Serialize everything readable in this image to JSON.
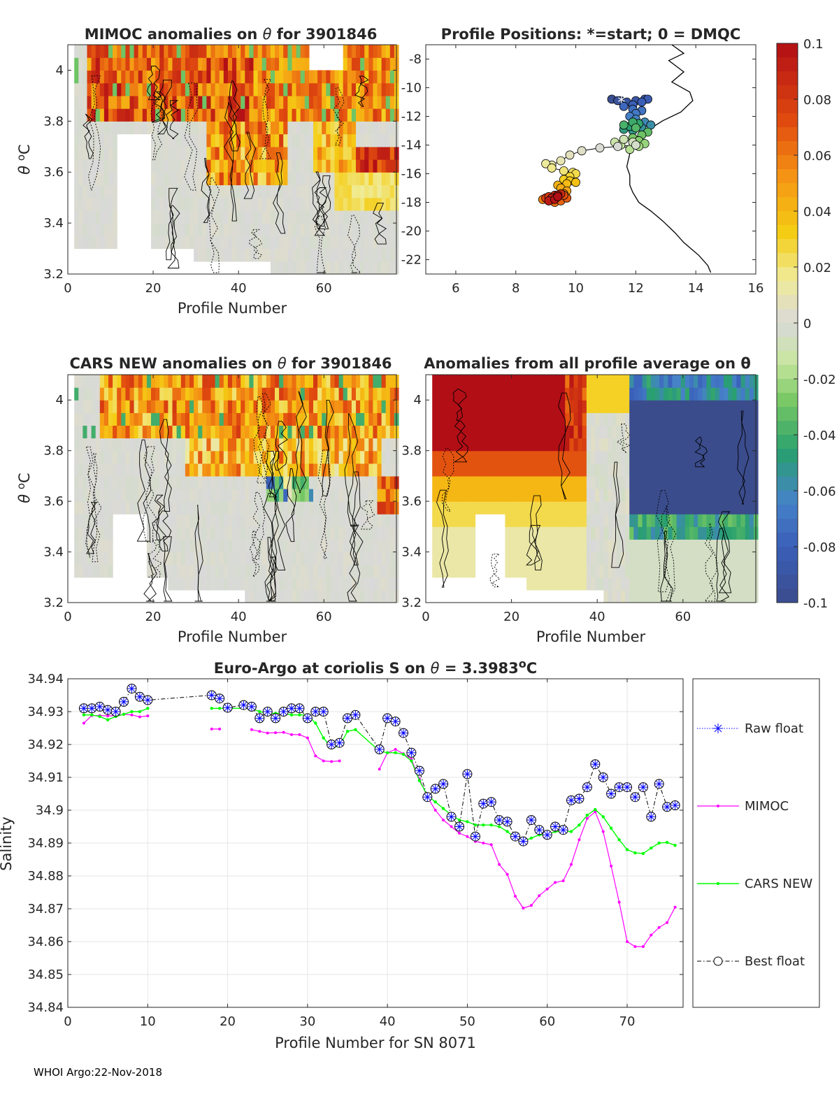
{
  "footer": "WHOI Argo:22-Nov-2018",
  "colors": {
    "raw": "#0000ff",
    "mimoc": "#ff00ff",
    "cars": "#00ff00",
    "best": "#000000",
    "axis": "#262626",
    "grid": "#e6e6e6"
  },
  "chart_data": [
    {
      "type": "heatmap",
      "id": "mimoc",
      "title_prefix": "MIMOC anomalies on ",
      "title_theta": "θ",
      "title_suffix": "  for 3901846",
      "xlabel": "Profile Number",
      "ylabel": "θ °C",
      "xlim": [
        0,
        77
      ],
      "ylim": [
        3.2,
        4.1
      ],
      "xticks": [
        "0",
        "20",
        "40",
        "60"
      ],
      "yticks": [
        "3.2",
        "3.4",
        "3.6",
        "3.8",
        "4"
      ],
      "profiles": 76,
      "levels": 18,
      "missing_bottom_from_profile": [
        [
          2,
          3.3
        ],
        [
          10,
          3.3
        ],
        [
          18,
          3.3
        ],
        [
          28,
          3.25
        ],
        [
          46,
          3.25
        ],
        [
          55,
          3.2
        ]
      ],
      "missing_blocks": [
        {
          "x": [
            11,
            18
          ],
          "y": [
            3.2,
            3.75
          ]
        },
        {
          "x": [
            56,
            64
          ],
          "y": [
            4.03,
            4.1
          ]
        }
      ],
      "anomaly": "warm upper layer (+0.06..+0.1) for profiles 5-40 above 3.8°C; warm band +0.06..+0.1 at 3.6-3.7°C for profiles 68-77; near zero below 3.6°C"
    },
    {
      "type": "scatter",
      "id": "positions",
      "title": "Profile Positions: *=start; 0 = DMQC",
      "xlim": [
        5,
        16
      ],
      "ylim": [
        -23,
        -7
      ],
      "xticks": [
        "6",
        "8",
        "10",
        "12",
        "14",
        "16"
      ],
      "yticks": [
        "-8",
        "-10",
        "-12",
        "-14",
        "-16",
        "-18",
        "-20",
        "-22"
      ],
      "lon": [
        11.5,
        11.2,
        11.4,
        11.7,
        12.0,
        12.3,
        12.4,
        12.2,
        11.9,
        11.6,
        11.9,
        12.2,
        12.0,
        11.8,
        12.0,
        12.3,
        12.5,
        12.2,
        11.9,
        11.6,
        11.8,
        12.1,
        11.9,
        11.6,
        12.0,
        12.4,
        12.2,
        11.9,
        12.1,
        12.3,
        12.1,
        11.8,
        11.5,
        11.3,
        11.6,
        11.9,
        12.0,
        11.4,
        10.8,
        10.2,
        9.8,
        9.5,
        9.2,
        9.0,
        9.2,
        9.6,
        9.9,
        10.0,
        9.8,
        9.6,
        9.8,
        10.0,
        9.7,
        9.4,
        9.5,
        9.7,
        9.6,
        9.3,
        9.0,
        8.9,
        9.1,
        9.3,
        9.5,
        9.7,
        9.6,
        9.4,
        9.2,
        9.0,
        9.1,
        9.3,
        9.5,
        9.4,
        9.2,
        9.1,
        9.3,
        9.4
      ],
      "lat": [
        -10.9,
        -10.8,
        -10.9,
        -11.0,
        -10.9,
        -10.8,
        -10.8,
        -11.0,
        -11.2,
        -11.3,
        -11.5,
        -11.6,
        -11.8,
        -12.0,
        -12.2,
        -12.4,
        -12.6,
        -12.8,
        -13.0,
        -12.9,
        -12.7,
        -12.5,
        -12.4,
        -12.6,
        -12.8,
        -13.1,
        -13.3,
        -13.5,
        -13.7,
        -13.9,
        -14.1,
        -14.3,
        -14.0,
        -13.8,
        -13.6,
        -13.8,
        -14.0,
        -14.1,
        -14.2,
        -14.4,
        -14.7,
        -15.1,
        -15.4,
        -15.3,
        -15.6,
        -15.8,
        -15.9,
        -16.0,
        -16.2,
        -16.4,
        -16.5,
        -16.6,
        -16.7,
        -16.8,
        -17.0,
        -17.2,
        -17.4,
        -17.6,
        -17.7,
        -17.8,
        -17.9,
        -18.0,
        -17.9,
        -17.7,
        -17.5,
        -17.6,
        -17.8,
        -17.7,
        -17.6,
        -17.5,
        -17.4,
        -17.5,
        -17.7,
        -17.9,
        -17.8,
        -17.6
      ],
      "start_marker": "*",
      "colorbar": {
        "ticks": [
          "0.1",
          "0.08",
          "0.06",
          "0.04",
          "0.02",
          "0",
          "-0.02",
          "-0.04",
          "-0.06",
          "-0.08",
          "-0.1"
        ],
        "range": [
          -0.1,
          0.1
        ]
      }
    },
    {
      "type": "heatmap",
      "id": "cars",
      "title_prefix": "CARS NEW anomalies on ",
      "title_theta": "θ",
      "title_suffix": " for 3901846",
      "xlabel": "Profile Number",
      "ylabel": "θ °C",
      "xlim": [
        0,
        77
      ],
      "ylim": [
        3.2,
        4.1
      ],
      "xticks": [
        "0",
        "20",
        "40",
        "60"
      ],
      "yticks": [
        "3.2",
        "3.4",
        "3.6",
        "3.8",
        "4"
      ],
      "anomaly": "warm +0.04..+0.1 for profiles 8-55 above 3.8°C; blue -0.08 patches at 3.6-3.7°C near profiles 48-55; near zero below 3.6°C"
    },
    {
      "type": "heatmap",
      "id": "avg",
      "title": "Anomalies from all profile average on θ",
      "xlabel": "Profile Number",
      "xlim": [
        0,
        77
      ],
      "ylim": [
        3.2,
        4.1
      ],
      "xticks": [
        "0",
        "20",
        "40",
        "60"
      ],
      "yticks": [
        "3.2",
        "3.4",
        "3.6",
        "3.8",
        "4"
      ],
      "anomaly": "strong warm (+0.1) for profiles 1-35 above 3.8°C; strong cold (-0.1) for profiles 48-77 at 3.55-4.0°C"
    },
    {
      "type": "line",
      "id": "salinity",
      "title_main": "Euro-Argo at coriolis S on ",
      "title_theta": "θ",
      "title_eq": " = 3.3983",
      "title_deg": "o",
      "title_c": "C",
      "xlabel": "Profile Number for SN 8071",
      "ylabel": "Salinity",
      "xlim": [
        0,
        77
      ],
      "ylim": [
        34.84,
        34.94
      ],
      "xticks": [
        0,
        10,
        20,
        30,
        40,
        50,
        60,
        70
      ],
      "yticks": [
        "34.84",
        "34.85",
        "34.86",
        "34.87",
        "34.88",
        "34.89",
        "34.9",
        "34.91",
        "34.92",
        "34.93",
        "34.94"
      ],
      "legend": [
        "Raw float",
        "MIMOC",
        "CARS NEW",
        "Best float"
      ],
      "series": [
        {
          "name": "Raw float / Best float",
          "x": [
            2,
            3,
            4,
            5,
            6,
            7,
            8,
            9,
            10,
            18,
            19,
            20,
            22,
            23,
            24,
            25,
            26,
            27,
            28,
            29,
            30,
            31,
            32,
            33,
            34,
            35,
            36,
            39,
            40,
            41,
            42,
            43,
            44,
            45,
            46,
            47,
            48,
            49,
            50,
            51,
            52,
            53,
            54,
            55,
            56,
            57,
            58,
            59,
            60,
            61,
            62,
            63,
            64,
            65,
            66,
            67,
            68,
            69,
            70,
            71,
            72,
            73,
            74,
            75,
            76
          ],
          "y": [
            34.931,
            34.931,
            34.9315,
            34.9305,
            34.93,
            34.933,
            34.937,
            34.9345,
            34.9335,
            34.935,
            34.934,
            34.9312,
            34.932,
            34.9315,
            34.928,
            34.93,
            34.928,
            34.93,
            34.931,
            34.931,
            34.928,
            34.93,
            34.93,
            34.92,
            34.9205,
            34.928,
            34.929,
            34.9185,
            34.928,
            34.927,
            34.9235,
            34.9175,
            34.912,
            34.904,
            34.9065,
            34.908,
            34.898,
            34.895,
            34.911,
            34.892,
            34.902,
            34.9025,
            34.897,
            34.8965,
            34.892,
            34.8905,
            34.897,
            34.894,
            34.8925,
            34.895,
            34.894,
            34.903,
            34.9035,
            34.907,
            34.914,
            34.91,
            34.905,
            34.907,
            34.907,
            34.904,
            34.907,
            34.898,
            34.908,
            34.901,
            34.9015
          ]
        },
        {
          "name": "MIMOC",
          "segments": [
            {
              "x": [
                2,
                3,
                4,
                5,
                6,
                7,
                8,
                9,
                10
              ],
              "y": [
                34.9265,
                34.9288,
                34.9288,
                34.9287,
                34.9288,
                34.9292,
                34.929,
                34.9284,
                34.9287
              ]
            },
            {
              "x": [
                18,
                19
              ],
              "y": [
                34.9247,
                34.9247
              ]
            },
            {
              "x": [
                23,
                24,
                25,
                26,
                27,
                28,
                29,
                30,
                31,
                32,
                33,
                34
              ],
              "y": [
                34.9245,
                34.924,
                34.9235,
                34.9236,
                34.9237,
                34.923,
                34.923,
                34.922,
                34.9165,
                34.915,
                34.9148,
                34.915
              ]
            },
            {
              "x": [
                39,
                40,
                41,
                42,
                43,
                44,
                45,
                46,
                47,
                48,
                49,
                50,
                51,
                52,
                53,
                54,
                55,
                56,
                57,
                58,
                59,
                60,
                61,
                62,
                63,
                64,
                65,
                66,
                67,
                68,
                69,
                70,
                71,
                72,
                73,
                74,
                75,
                76
              ],
              "y": [
                34.9125,
                34.9175,
                34.9185,
                34.9172,
                34.9155,
                34.9095,
                34.904,
                34.9,
                34.897,
                34.895,
                34.893,
                34.892,
                34.8905,
                34.89,
                34.8895,
                34.8835,
                34.8805,
                34.8738,
                34.8702,
                34.871,
                34.874,
                34.876,
                34.878,
                34.8785,
                34.8835,
                34.891,
                34.8975,
                34.8995,
                34.8935,
                34.883,
                34.872,
                34.86,
                34.8585,
                34.8585,
                34.862,
                34.8643,
                34.8658,
                34.8705
              ]
            }
          ]
        },
        {
          "name": "CARS NEW",
          "x": [
            2,
            3,
            4,
            5,
            6,
            7,
            8,
            9,
            10,
            18,
            19,
            20,
            22,
            23,
            24,
            25,
            26,
            27,
            28,
            29,
            30,
            31,
            32,
            33,
            34,
            35,
            36,
            39,
            40,
            41,
            42,
            43,
            44,
            45,
            46,
            47,
            48,
            49,
            50,
            51,
            52,
            53,
            54,
            55,
            56,
            57,
            58,
            59,
            60,
            61,
            62,
            63,
            64,
            65,
            66,
            67,
            68,
            69,
            70,
            71,
            72,
            73,
            74,
            75,
            76
          ],
          "y": [
            34.929,
            34.929,
            34.9285,
            34.9275,
            34.9285,
            34.9292,
            34.93,
            34.93,
            34.931,
            34.931,
            34.931,
            34.931,
            34.931,
            34.931,
            34.93,
            34.9295,
            34.9295,
            34.9295,
            34.929,
            34.929,
            34.929,
            34.9265,
            34.922,
            34.919,
            34.9195,
            34.924,
            34.9245,
            34.918,
            34.9175,
            34.9175,
            34.917,
            34.915,
            34.909,
            34.9045,
            34.9025,
            34.9005,
            34.8985,
            34.897,
            34.8965,
            34.8955,
            34.8955,
            34.8955,
            34.895,
            34.8935,
            34.8915,
            34.8905,
            34.8915,
            34.8925,
            34.8925,
            34.8935,
            34.8935,
            34.8935,
            34.8955,
            34.8985,
            34.9002,
            34.898,
            34.8945,
            34.891,
            34.888,
            34.887,
            34.8868,
            34.8885,
            34.89,
            34.8902,
            34.8893
          ]
        }
      ]
    }
  ]
}
